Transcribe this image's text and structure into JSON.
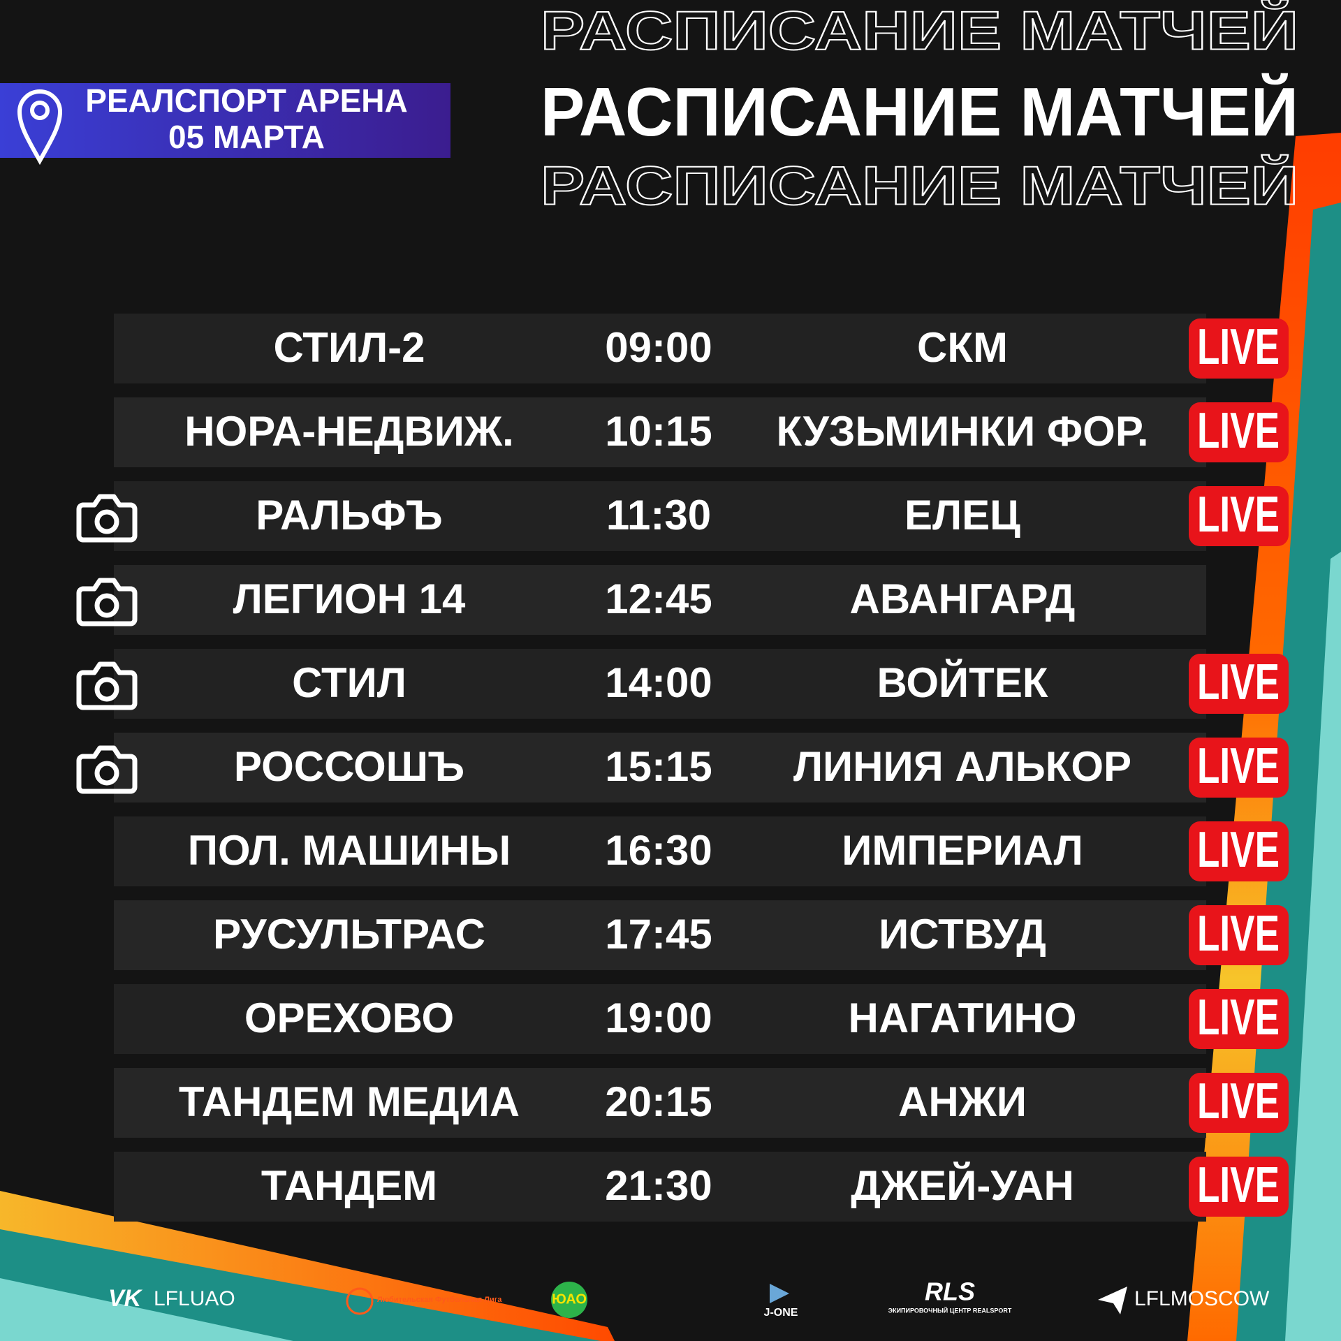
{
  "header": {
    "venue": "РЕАЛСПОРТ АРЕНА",
    "date": "05 МАРТА",
    "title": "РАСПИСАНИЕ МАТЧЕЙ"
  },
  "matches": [
    {
      "home": "СТИЛ-2",
      "time": "09:00",
      "away": "СКМ",
      "live": "LIVE",
      "photo": false
    },
    {
      "home": "НОРА-НЕДВИЖ.",
      "time": "10:15",
      "away": "КУЗЬМИНКИ ФОР.",
      "live": "LIVE",
      "photo": false
    },
    {
      "home": "РАЛЬФЪ",
      "time": "11:30",
      "away": "ЕЛЕЦ",
      "live": "LIVE",
      "photo": true
    },
    {
      "home": "ЛЕГИОН 14",
      "time": "12:45",
      "away": "АВАНГАРД",
      "live": null,
      "photo": true
    },
    {
      "home": "СТИЛ",
      "time": "14:00",
      "away": "ВОЙТЕК",
      "live": "LIVE",
      "photo": true
    },
    {
      "home": "РОССОШЪ",
      "time": "15:15",
      "away": "ЛИНИЯ АЛЬКОР",
      "live": "LIVE",
      "photo": true
    },
    {
      "home": "ПОЛ. МАШИНЫ",
      "time": "16:30",
      "away": "ИМПЕРИАЛ",
      "live": "LIVE",
      "photo": false
    },
    {
      "home": "РУСУЛЬТРАС",
      "time": "17:45",
      "away": "ИСТВУД",
      "live": "LIVE",
      "photo": false
    },
    {
      "home": "ОРЕХОВО",
      "time": "19:00",
      "away": "НАГАТИНО",
      "live": "LIVE",
      "photo": false
    },
    {
      "home": "ТАНДЕМ МЕДИА",
      "time": "20:15",
      "away": "АНЖИ",
      "live": "LIVE",
      "photo": false
    },
    {
      "home": "ТАНДЕМ",
      "time": "21:30",
      "away": "ДЖЕЙ-УАН",
      "live": "LIVE",
      "photo": false
    }
  ],
  "footer": {
    "vk": "LFLUAO",
    "league": "Любительская Футбольная Лига",
    "uao": "ЮАО",
    "jone": "J-ONE",
    "rls": "RLS",
    "rls_sub": "ЭКИПИРОВОЧНЫЙ ЦЕНТР REALSPORT",
    "telegram": "LFLMOSCOW"
  }
}
